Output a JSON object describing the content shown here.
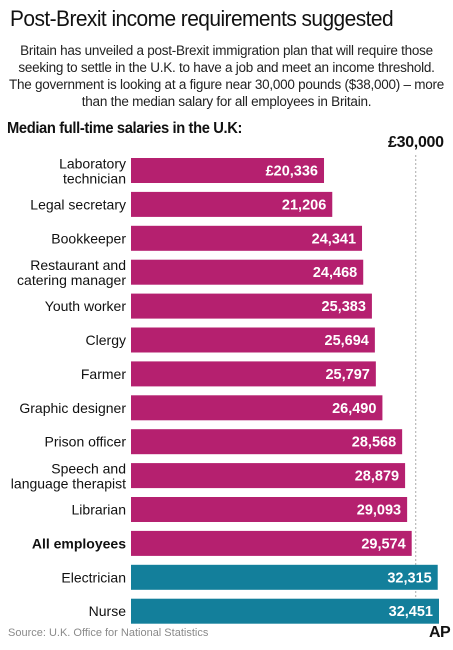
{
  "header": {
    "title": "Post-Brexit income requirements suggested",
    "intro": "Britain has unveiled a post-Brexit immigration plan that will require those seeking to settle in the U.K. to have a job and meet an income threshold. The government is looking at a figure near 30,000 pounds ($38,000) – more than the median salary for all employees in Britain."
  },
  "colors": {
    "below_threshold": "#b5206f",
    "above_threshold": "#137f9b",
    "reference_line": "#aaaaaa"
  },
  "chart_data": {
    "type": "bar",
    "orientation": "horizontal",
    "title": "Median full-time salaries in the U.K:",
    "reference_line": {
      "value": 30000,
      "label": "£30,000",
      "style": "dotted"
    },
    "xlim": [
      0,
      32451
    ],
    "grid": false,
    "legend": "none",
    "categories": [
      "Laboratory technician",
      "Legal secretary",
      "Bookkeeper",
      "Restaurant and catering manager",
      "Youth worker",
      "Clergy",
      "Farmer",
      "Graphic designer",
      "Prison officer",
      "Speech and language therapist",
      "Librarian",
      "All employees",
      "Electrician",
      "Nurse"
    ],
    "category_lines": [
      [
        "Laboratory",
        "technician"
      ],
      [
        "Legal secretary"
      ],
      [
        "Bookkeeper"
      ],
      [
        "Restaurant and",
        "catering manager"
      ],
      [
        "Youth worker"
      ],
      [
        "Clergy"
      ],
      [
        "Farmer"
      ],
      [
        "Graphic designer"
      ],
      [
        "Prison officer"
      ],
      [
        "Speech and",
        "language therapist"
      ],
      [
        "Librarian"
      ],
      [
        "All employees"
      ],
      [
        "Electrician"
      ],
      [
        "Nurse"
      ]
    ],
    "values": [
      20336,
      21206,
      24341,
      24468,
      25383,
      25694,
      25797,
      26490,
      28568,
      28879,
      29093,
      29574,
      32315,
      32451
    ],
    "value_labels": [
      "£20,336",
      "21,206",
      "24,341",
      "24,468",
      "25,383",
      "25,694",
      "25,797",
      "26,490",
      "28,568",
      "28,879",
      "29,093",
      "29,574",
      "32,315",
      "32,451"
    ],
    "bold_categories": [
      "All employees"
    ]
  },
  "footer": {
    "source": "Source: U.K. Office for National Statistics",
    "logo": "AP"
  }
}
